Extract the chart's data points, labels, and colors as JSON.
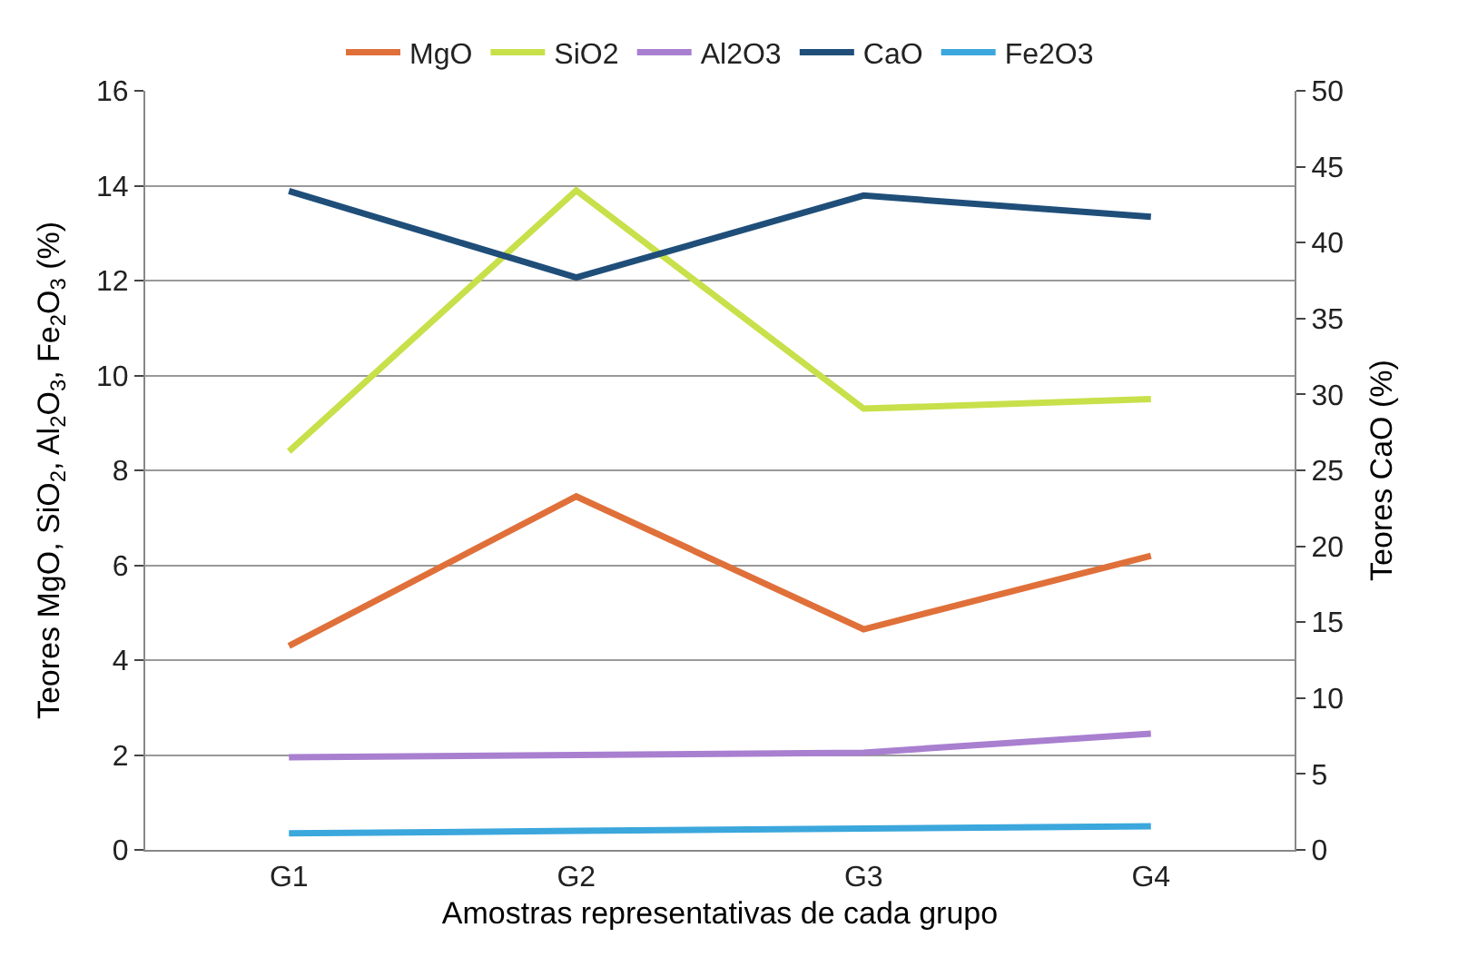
{
  "chart_data": {
    "type": "line",
    "xlabel": "Amostras representativas de cada grupo",
    "ylabel": "Teores MgO, SiO$_{2}$, Al$_{2}$O$_{3}$, Fe$_{2}$O$_{3}$ (%)",
    "y2label": "Teores CaO (%)",
    "categories": [
      "G1",
      "G2",
      "G3",
      "G4"
    ],
    "series": [
      {
        "name": "MgO",
        "color": "#e0703a",
        "values": [
          4.3,
          7.45,
          4.65,
          6.2
        ]
      },
      {
        "name": "SiO2",
        "color": "#c8e04a",
        "values": [
          8.4,
          13.9,
          9.3,
          9.5
        ]
      },
      {
        "name": "Al2O3",
        "color": "#a97fd0",
        "values": [
          1.95,
          2.0,
          2.05,
          2.45
        ]
      },
      {
        "name": "CaO",
        "color": "#1f4e79",
        "values": [
          43.4,
          37.7,
          43.1,
          41.7
        ],
        "axis": "y2"
      },
      {
        "name": "Fe2O3",
        "color": "#3ba7dc",
        "values": [
          0.35,
          0.4,
          0.45,
          0.5
        ]
      }
    ],
    "ylim": [
      0,
      16
    ],
    "yticks": [
      0,
      2,
      4,
      6,
      8,
      10,
      12,
      14,
      16
    ],
    "y2lim": [
      0,
      50
    ],
    "y2ticks": [
      0,
      5,
      10,
      15,
      20,
      25,
      30,
      35,
      40,
      45,
      50
    ],
    "grid": "y",
    "legend": "top",
    "marker": "none",
    "line_style": "solid"
  }
}
